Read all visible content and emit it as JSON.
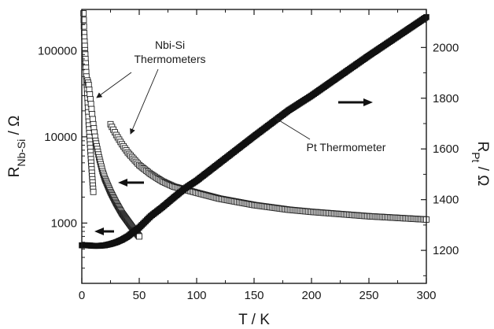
{
  "chart_data": {
    "type": "scatter",
    "x_axis": {
      "label": "T / K",
      "range": [
        0,
        300
      ],
      "ticks": [
        0,
        50,
        100,
        150,
        200,
        250,
        300
      ],
      "tick_labels": [
        "0",
        "50",
        "100",
        "150",
        "200",
        "250",
        "300"
      ]
    },
    "y_axis_left": {
      "label_main": "R",
      "label_sub": "Nb-Si",
      "label_unit": " / Ω",
      "scale": "log",
      "range": [
        200,
        300000
      ],
      "ticks": [
        1000,
        10000,
        100000
      ],
      "tick_labels": [
        "1000",
        "10000",
        "100000"
      ]
    },
    "y_axis_right": {
      "label_main": "R",
      "label_sub": "Pt",
      "label_unit": " / Ω",
      "scale": "linear",
      "range": [
        1070,
        2150
      ],
      "ticks": [
        1200,
        1400,
        1600,
        1800,
        2000
      ],
      "tick_labels": [
        "1200",
        "1400",
        "1600",
        "1800",
        "2000"
      ]
    },
    "series": [
      {
        "axis": "left",
        "marker": "open-square",
        "x": [
          1.5,
          2,
          3,
          4,
          5,
          6,
          7,
          8,
          9,
          10
        ],
        "y": [
          270000,
          160000,
          90000,
          50000,
          28000,
          15000,
          9000,
          5500,
          3500,
          2300
        ]
      },
      {
        "axis": "left",
        "marker": "open-square",
        "x": [
          5,
          6,
          8,
          10,
          12,
          15,
          18,
          20,
          25,
          30,
          35,
          40,
          45,
          50
        ],
        "y": [
          45000,
          40000,
          24000,
          14000,
          9000,
          5800,
          4000,
          3300,
          2300,
          1700,
          1300,
          1050,
          850,
          700
        ]
      },
      {
        "axis": "left",
        "marker": "open-square",
        "x": [
          25,
          30,
          35,
          40,
          50,
          60,
          70,
          80,
          100,
          120,
          150,
          180,
          200,
          250,
          300
        ],
        "y": [
          14000,
          10500,
          8200,
          6600,
          4700,
          3700,
          3050,
          2650,
          2250,
          1920,
          1620,
          1430,
          1350,
          1200,
          1100
        ]
      },
      {
        "axis": "right",
        "marker": "filled-square",
        "x": [
          0,
          5,
          10,
          15,
          20,
          25,
          30,
          35,
          40,
          50,
          60,
          70,
          80,
          90,
          100,
          120,
          150,
          180,
          200,
          250,
          300
        ],
        "y": [
          1220,
          1220,
          1218,
          1218,
          1220,
          1225,
          1232,
          1242,
          1255,
          1290,
          1335,
          1370,
          1408,
          1445,
          1475,
          1545,
          1650,
          1752,
          1810,
          1968,
          2120
        ]
      }
    ],
    "annotations": [
      {
        "lines": [
          "Nbi-Si",
          "Thermometers"
        ]
      },
      {
        "lines": [
          "Pt Thermometer"
        ]
      }
    ],
    "arrows": [
      {
        "direction": "right"
      },
      {
        "direction": "left"
      },
      {
        "direction": "left"
      }
    ]
  }
}
